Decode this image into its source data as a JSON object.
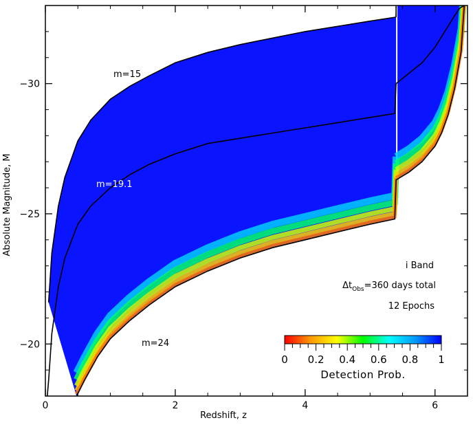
{
  "chart_data": {
    "type": "heatmap",
    "title": "",
    "xlabel": "Redshift, z",
    "ylabel": "Absolute Magnitude, M",
    "xlim": [
      0,
      6.5
    ],
    "ylim": [
      -18,
      -33
    ],
    "x_ticks": [
      0,
      2,
      4,
      6
    ],
    "x_tick_labels": [
      "0",
      "2",
      "4",
      "6"
    ],
    "y_ticks": [
      -20,
      -25,
      -30
    ],
    "y_tick_labels": [
      "−20",
      "−25",
      "−30"
    ],
    "grid": false,
    "colormap": [
      "#ff0000",
      "#ff9900",
      "#ffff00",
      "#00ff00",
      "#00ffff",
      "#0099ff",
      "#0000ff"
    ],
    "colorbar": {
      "title": "Detection Prob.",
      "range": [
        0,
        1
      ],
      "ticks": [
        0,
        0.2,
        0.4,
        0.6,
        0.8,
        1
      ],
      "tick_labels": [
        "0",
        "0.2",
        "0.4",
        "0.6",
        "0.8",
        "1"
      ],
      "placement": "bottom-right"
    },
    "contours": [
      {
        "label": "m=15",
        "magnitude": 15
      },
      {
        "label": "m=19.1",
        "magnitude": 19.1
      },
      {
        "label": "m=24",
        "magnitude": 24
      }
    ],
    "annotations": {
      "band": "i Band",
      "duration_prefix": "Δt",
      "duration_subscript": "Obs",
      "duration_suffix": "=360 days total",
      "epochs": "12 Epochs"
    },
    "band_steps_z": [
      5.4,
      6.1
    ],
    "limit_curves": {
      "bright_m15": {
        "x": [
          0.05,
          0.1,
          0.2,
          0.3,
          0.5,
          0.7,
          1.0,
          1.3,
          1.6,
          2.0,
          2.5,
          3.0,
          3.5,
          4.0,
          4.5,
          5.0,
          5.39
        ],
        "y": [
          -21.6,
          -23.5,
          -25.3,
          -26.4,
          -27.8,
          -28.6,
          -29.4,
          -29.9,
          -30.3,
          -30.8,
          -31.2,
          -31.5,
          -31.75,
          -32.0,
          -32.2,
          -32.4,
          -32.55
        ]
      },
      "mid_m19_1": {
        "x": [
          0.03,
          0.05,
          0.1,
          0.2,
          0.3,
          0.5,
          0.7,
          1.0,
          1.3,
          1.6,
          2.0,
          2.5,
          3.0,
          3.5,
          4.0,
          4.5,
          5.0,
          5.38,
          5.4,
          5.6,
          5.8,
          6.0,
          6.1,
          6.2,
          6.3,
          6.38,
          6.45
        ],
        "y": [
          -18.0,
          -18.6,
          -20.4,
          -22.2,
          -23.3,
          -24.6,
          -25.3,
          -26.0,
          -26.5,
          -26.9,
          -27.3,
          -27.7,
          -27.9,
          -28.1,
          -28.3,
          -28.5,
          -28.7,
          -28.85,
          -30.0,
          -30.4,
          -30.8,
          -31.4,
          -31.8,
          -32.2,
          -32.6,
          -32.9,
          -33.0
        ]
      },
      "faint_m24": {
        "x": [
          0.48,
          0.6,
          0.8,
          1.0,
          1.3,
          1.6,
          2.0,
          2.5,
          3.0,
          3.5,
          4.0,
          4.5,
          5.0,
          5.38,
          5.4,
          5.6,
          5.8,
          6.0,
          6.1,
          6.2,
          6.3,
          6.4,
          6.45
        ],
        "y": [
          -18.0,
          -18.6,
          -19.5,
          -20.2,
          -20.9,
          -21.5,
          -22.2,
          -22.8,
          -23.3,
          -23.7,
          -24.0,
          -24.3,
          -24.6,
          -24.8,
          -26.3,
          -26.6,
          -27.0,
          -27.6,
          -28.1,
          -28.8,
          -29.8,
          -31.2,
          -33.0
        ]
      },
      "high_z_bright": {
        "x": [
          5.41,
          5.5,
          5.7,
          5.9,
          6.1,
          6.3,
          6.45
        ],
        "y": [
          -33.0,
          -33.0,
          -33.0,
          -33.0,
          -33.0,
          -33.0,
          -33.0
        ]
      }
    }
  }
}
